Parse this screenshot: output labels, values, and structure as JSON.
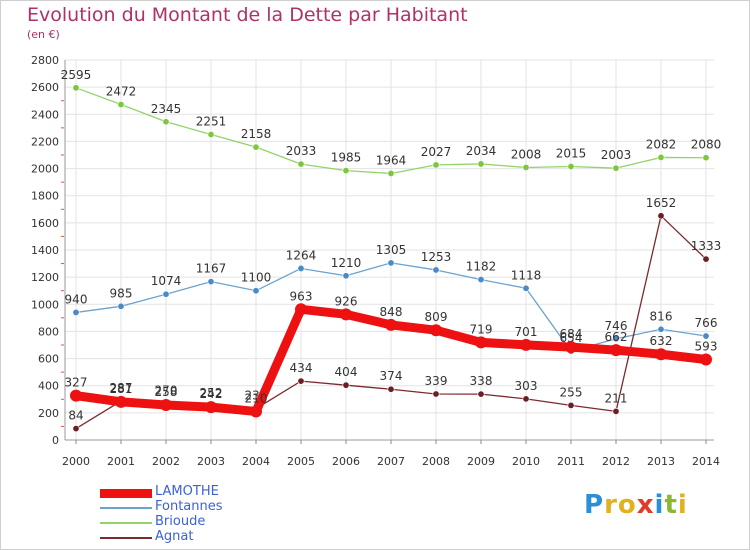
{
  "header": {
    "title": "Evolution du Montant de la Dette par Habitant",
    "subtitle": "(en €)"
  },
  "logo": {
    "letters": [
      "P",
      "r",
      "o",
      "x",
      "i",
      "t",
      "i"
    ],
    "colors": [
      "#2b8fd6",
      "#e2b21e",
      "#e2b21e",
      "#e23a2a",
      "#2b8fd6",
      "#8ab832",
      "#e2b21e"
    ]
  },
  "chart_data": {
    "type": "line",
    "title": "Evolution du Montant de la Dette par Habitant",
    "subtitle": "(en €)",
    "xlabel": "",
    "ylabel": "",
    "x": [
      "2000",
      "2001",
      "2002",
      "2003",
      "2004",
      "2005",
      "2006",
      "2007",
      "2008",
      "2009",
      "2010",
      "2011",
      "2012",
      "2013",
      "2014"
    ],
    "ylim": [
      0,
      2800
    ],
    "yticks": [
      0,
      200,
      400,
      600,
      800,
      1000,
      1200,
      1400,
      1600,
      1800,
      2000,
      2200,
      2400,
      2600,
      2800
    ],
    "grid": true,
    "legend": "bottom-left",
    "series": [
      {
        "name": "Brioude",
        "color": "#93d36a",
        "marker": "#7cc73e",
        "values": [
          2595,
          2472,
          2345,
          2251,
          2158,
          2033,
          1985,
          1964,
          2027,
          2034,
          2008,
          2015,
          2003,
          2082,
          2080
        ]
      },
      {
        "name": "Fontannes",
        "color": "#6aa3d0",
        "marker": "#4a8ac6",
        "values": [
          940,
          985,
          1074,
          1167,
          1100,
          1264,
          1210,
          1305,
          1253,
          1182,
          1118,
          654,
          746,
          816,
          766
        ]
      },
      {
        "name": "Agnat",
        "color": "#7d2a2f",
        "marker": "#6b1f24",
        "values": [
          84,
          287,
          270,
          252,
          231,
          434,
          404,
          374,
          339,
          338,
          303,
          255,
          211,
          1652,
          1333
        ]
      },
      {
        "name": "LAMOTHE",
        "color": "#ee1111",
        "marker": "#ee1111",
        "values": [
          327,
          281,
          258,
          242,
          210,
          963,
          926,
          848,
          809,
          719,
          701,
          684,
          662,
          632,
          593
        ]
      }
    ]
  }
}
